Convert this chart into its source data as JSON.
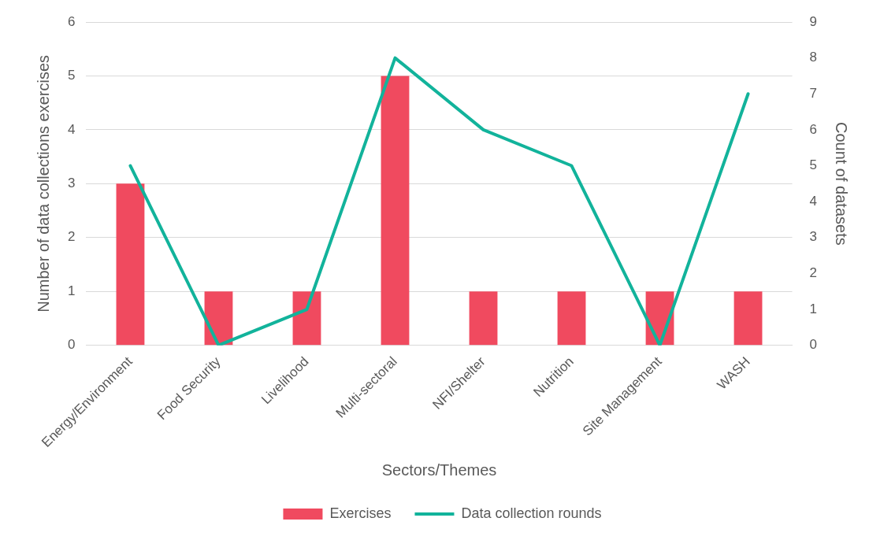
{
  "chart_data": {
    "type": "bar",
    "xlabel": "Sectors/Themes",
    "ylabel": "Number of data collections exercises",
    "y2label": "Count of datasets",
    "categories": [
      "Energy/Environment",
      "Food Security",
      "Livelihood",
      "Multi-sectoral",
      "NFI/Shelter",
      "Nutrition",
      "Site Management",
      "WASH"
    ],
    "series": [
      {
        "name": "Exercises",
        "color": "#f04a5f",
        "values": [
          3,
          1,
          1,
          5,
          1,
          1,
          1,
          1
        ]
      },
      {
        "name": "Data collection rounds",
        "type": "line",
        "axis": "y2",
        "color": "#12b39b",
        "values": [
          5,
          0,
          1,
          8,
          6,
          5,
          0,
          7
        ]
      }
    ],
    "ylim": [
      0,
      6
    ],
    "yticks": [
      0,
      1,
      2,
      3,
      4,
      5,
      6
    ],
    "y2lim": [
      0,
      9
    ],
    "y2ticks": [
      0,
      1,
      2,
      3,
      4,
      5,
      6,
      7,
      8,
      9
    ],
    "grid": "y",
    "legend": "bottom",
    "marker": "none",
    "line_style": "solid"
  }
}
